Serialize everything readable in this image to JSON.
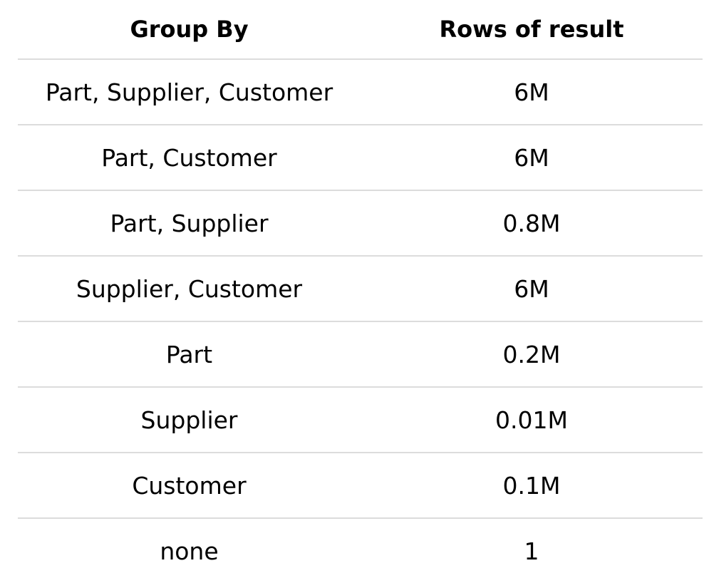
{
  "chart_data": {
    "type": "table",
    "columns": [
      "Group By",
      "Rows of result"
    ],
    "rows": [
      [
        "Part, Supplier, Customer",
        "6M"
      ],
      [
        "Part, Customer",
        "6M"
      ],
      [
        "Part, Supplier",
        "0.8M"
      ],
      [
        "Supplier, Customer",
        "6M"
      ],
      [
        "Part",
        "0.2M"
      ],
      [
        "Supplier",
        "0.01M"
      ],
      [
        "Customer",
        "0.1M"
      ],
      [
        "none",
        "1"
      ]
    ]
  }
}
